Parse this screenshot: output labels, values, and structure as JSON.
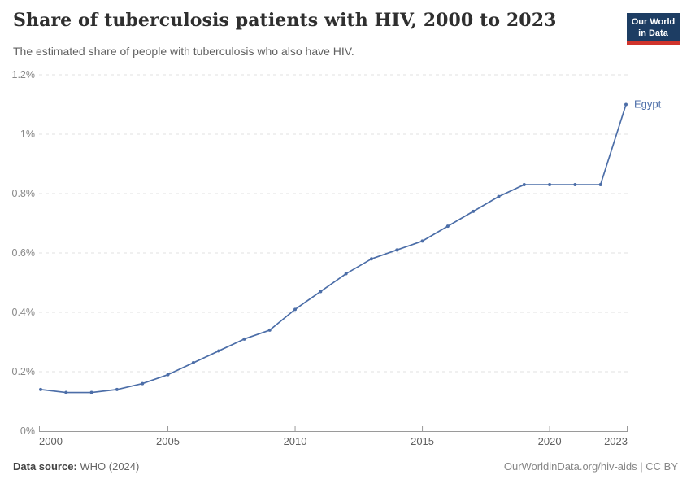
{
  "header": {
    "logo": {
      "line1": "Our World",
      "line2": "in Data",
      "bg_color": "#1d3d63",
      "accent_color": "#d0342c"
    }
  },
  "chart_data": {
    "type": "line",
    "title": "Share of tuberculosis patients with HIV, 2000 to 2023",
    "subtitle": "The estimated share of people with tuberculosis who also have HIV.",
    "xlabel": "",
    "ylabel": "",
    "unit": "%",
    "xlim": [
      2000,
      2023
    ],
    "ylim": [
      0,
      1.2
    ],
    "grid": "horizontal-dashed",
    "legend": "end-of-line-label",
    "x": [
      2000,
      2001,
      2002,
      2003,
      2004,
      2005,
      2006,
      2007,
      2008,
      2009,
      2010,
      2011,
      2012,
      2013,
      2014,
      2015,
      2016,
      2017,
      2018,
      2019,
      2020,
      2021,
      2022,
      2023
    ],
    "series": [
      {
        "name": "Egypt",
        "color": "#4c6ea8",
        "values": [
          0.14,
          0.13,
          0.13,
          0.14,
          0.16,
          0.19,
          0.23,
          0.27,
          0.31,
          0.34,
          0.41,
          0.47,
          0.53,
          0.58,
          0.61,
          0.64,
          0.69,
          0.74,
          0.79,
          0.83,
          0.83,
          0.83,
          0.83,
          1.1
        ]
      }
    ],
    "yticks": [
      {
        "value": 0,
        "label": "0%"
      },
      {
        "value": 0.2,
        "label": "0.2%"
      },
      {
        "value": 0.4,
        "label": "0.4%"
      },
      {
        "value": 0.6,
        "label": "0.6%"
      },
      {
        "value": 0.8,
        "label": "0.8%"
      },
      {
        "value": 1,
        "label": "1%"
      },
      {
        "value": 1.2,
        "label": "1.2%"
      }
    ],
    "xticks": [
      {
        "value": 2000,
        "label": "2000"
      },
      {
        "value": 2005,
        "label": "2005"
      },
      {
        "value": 2010,
        "label": "2010"
      },
      {
        "value": 2015,
        "label": "2015"
      },
      {
        "value": 2020,
        "label": "2020"
      },
      {
        "value": 2023,
        "label": "2023"
      }
    ]
  },
  "footer": {
    "source_label": "Data source:",
    "source_value": "WHO (2024)",
    "credit_link": "OurWorldinData.org/hiv-aids",
    "credit_suffix": " | CC BY"
  }
}
